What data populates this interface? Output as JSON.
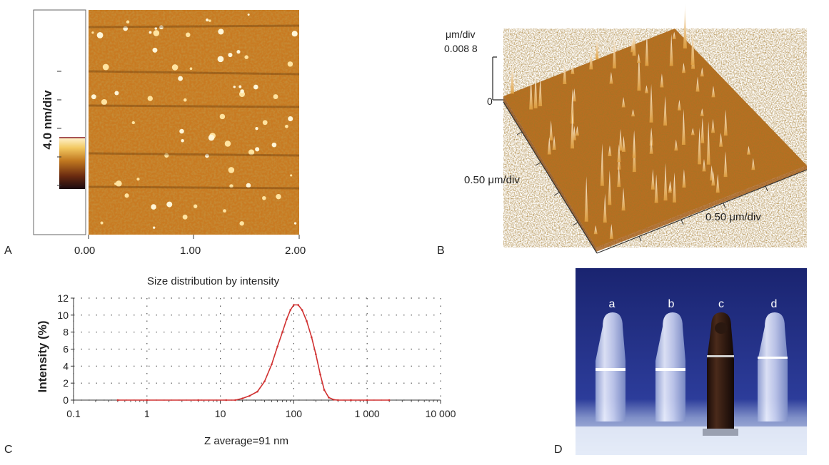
{
  "panels": {
    "a": {
      "letter": "A",
      "scale_label": "4.0 nm/div",
      "x_ticks": [
        "0.00",
        "1.00",
        "2.00"
      ]
    },
    "b": {
      "letter": "B",
      "z_unit": "μm/div",
      "z_value": "0.008 8",
      "z_zero": "0",
      "x_label_left": "0.50 μm/div",
      "x_label_right": "0.50 μm/div"
    },
    "c": {
      "letter": "C",
      "title": "Size distribution by intensity",
      "xlabel": "Z average=91 nm",
      "ylabel": "Intensity (%)"
    },
    "d": {
      "letter": "D",
      "tube_labels": [
        "a",
        "b",
        "c",
        "d"
      ]
    }
  },
  "colors": {
    "afm_mid": "#c8781e",
    "afm_light": "#f0b040",
    "curve": "#d03030",
    "photo_bg": "#1f2b7a"
  },
  "chart_data": {
    "type": "line",
    "title": "Size distribution by intensity",
    "xlabel": "Z average=91 nm",
    "ylabel": "Intensity (%)",
    "x_scale": "log",
    "xlim": [
      0.1,
      10000
    ],
    "ylim": [
      0,
      12
    ],
    "x_tick_labels": [
      "0.1",
      "1",
      "10",
      "100",
      "1 000",
      "10 000"
    ],
    "x_tick_values": [
      0.1,
      1,
      10,
      100,
      1000,
      10000
    ],
    "y_ticks": [
      0,
      2,
      4,
      6,
      8,
      10,
      12
    ],
    "grid": true,
    "series": [
      {
        "x": [
          0.4,
          1,
          5,
          12,
          16,
          20,
          25,
          32,
          40,
          50,
          60,
          70,
          80,
          90,
          100,
          115,
          130,
          150,
          175,
          200,
          230,
          260,
          300,
          350,
          400,
          600,
          1000,
          2000
        ],
        "y": [
          0,
          0,
          0,
          0,
          0,
          0.2,
          0.5,
          1.0,
          2.2,
          4.2,
          6.3,
          8.0,
          9.5,
          10.6,
          11.2,
          11.2,
          10.6,
          9.3,
          7.4,
          5.4,
          3.0,
          1.2,
          0.3,
          0.05,
          0,
          0,
          0,
          0
        ]
      }
    ]
  }
}
